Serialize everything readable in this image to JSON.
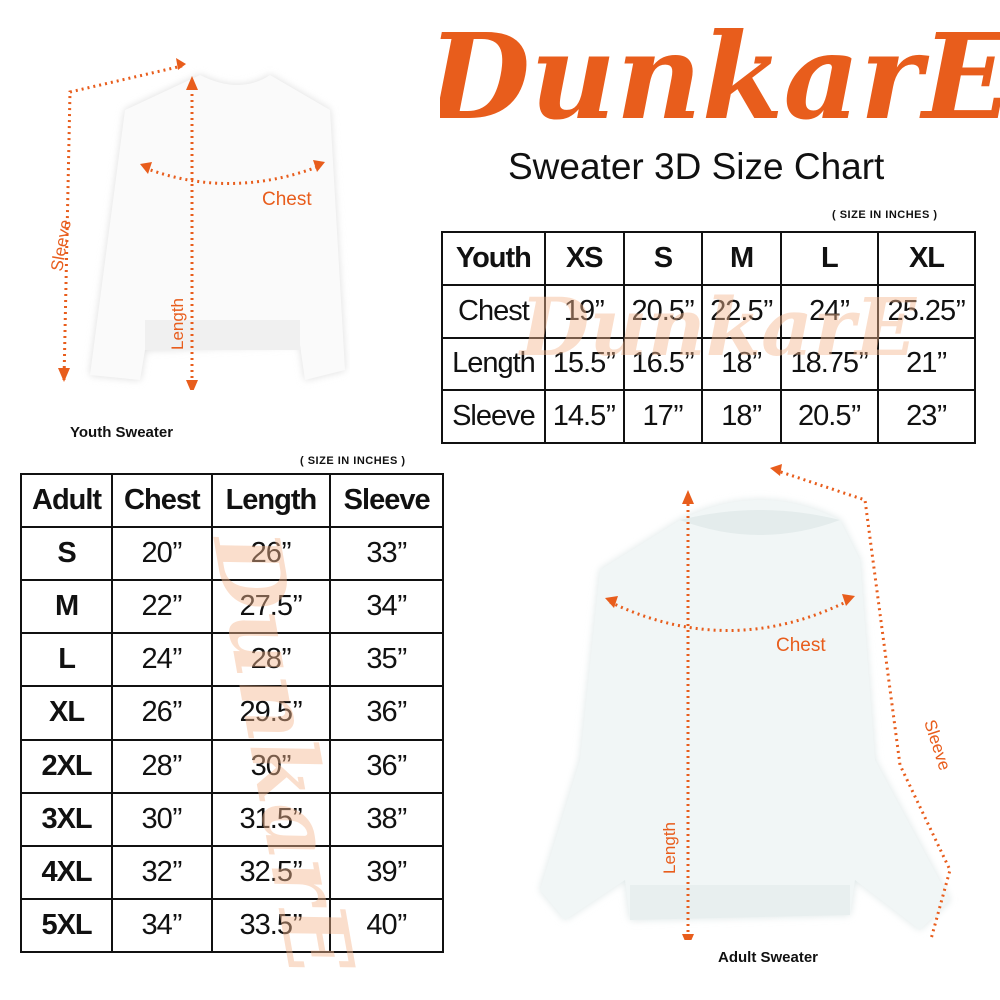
{
  "brand": {
    "logo_text": "DunkarE",
    "accent_color": "#e85d1c"
  },
  "title": "Sweater 3D Size Chart",
  "youth": {
    "note": "( SIZE IN INCHES )",
    "caption": "Youth Sweater",
    "labels": {
      "sleeve": "Sleeve",
      "chest": "Chest",
      "length": "Length"
    },
    "table": {
      "headers": [
        "Youth",
        "XS",
        "S",
        "M",
        "L",
        "XL"
      ],
      "rows": [
        [
          "Chest",
          "19’’",
          "20.5’’",
          "22.5’’",
          "24’’",
          "25.25’’"
        ],
        [
          "Length",
          "15.5’’",
          "16.5’’",
          "18’’",
          "18.75’’",
          "21’’"
        ],
        [
          "Sleeve",
          "14.5’’",
          "17’’",
          "18’’",
          "20.5’’",
          "23’’"
        ]
      ]
    }
  },
  "adult": {
    "note": "( SIZE IN INCHES )",
    "caption": "Adult Sweater",
    "labels": {
      "sleeve": "Sleeve",
      "chest": "Chest",
      "length": "Length"
    },
    "table": {
      "headers": [
        "Adult",
        "Chest",
        "Length",
        "Sleeve"
      ],
      "rows": [
        [
          "S",
          "20’’",
          "26’’",
          "33’’"
        ],
        [
          "M",
          "22’’",
          "27.5’’",
          "34’’"
        ],
        [
          "L",
          "24’’",
          "28’’",
          "35’’"
        ],
        [
          "XL",
          "26’’",
          "29.5’’",
          "36’’"
        ],
        [
          "2XL",
          "28’’",
          "30’’",
          "36’’"
        ],
        [
          "3XL",
          "30’’",
          "31.5’’",
          "38’’"
        ],
        [
          "4XL",
          "32’’",
          "32.5’’",
          "39’’"
        ],
        [
          "5XL",
          "34’’",
          "33.5’’",
          "40’’"
        ]
      ]
    }
  }
}
